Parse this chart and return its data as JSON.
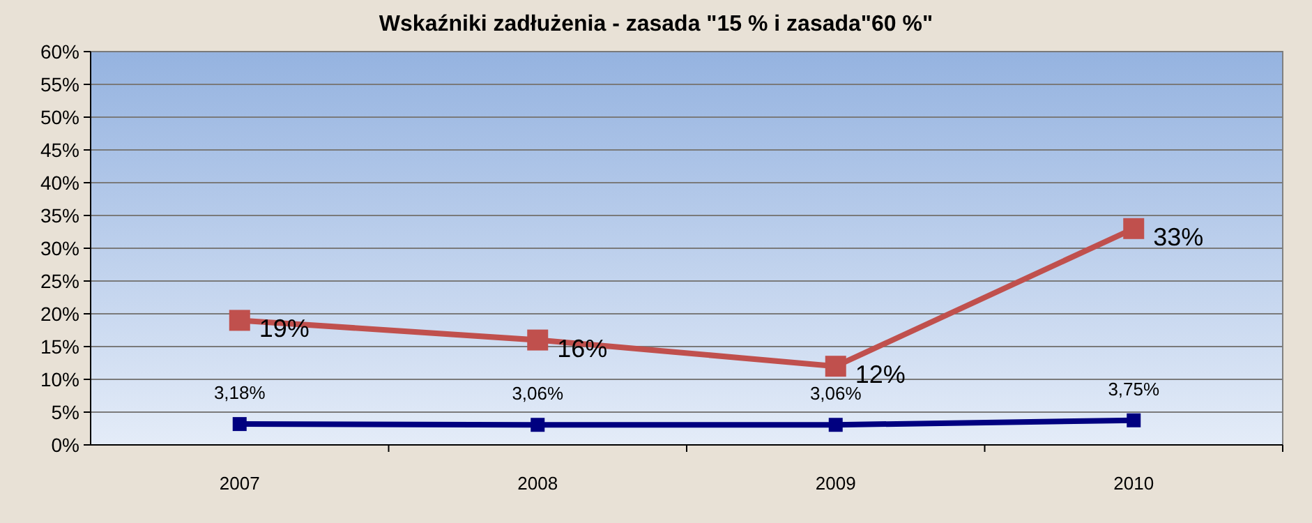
{
  "chart_data": {
    "type": "line",
    "title": "Wskaźniki zadłużenia - zasada \"15 % i zasada\"60 %\"",
    "categories": [
      "2007",
      "2008",
      "2009",
      "2010"
    ],
    "series": [
      {
        "color": "#c0504d",
        "values": [
          19,
          16,
          12,
          33
        ],
        "value_labels": [
          "19%",
          "16%",
          "12%",
          "33%"
        ]
      },
      {
        "color": "#000080",
        "values": [
          3.18,
          3.06,
          3.06,
          3.75
        ],
        "value_labels": [
          "3,18%",
          "3,06%",
          "3,06%",
          "3,75%"
        ]
      }
    ],
    "ylim": [
      0,
      60
    ],
    "yticks": [
      {
        "value": 0,
        "label": "0%"
      },
      {
        "value": 5,
        "label": "5%"
      },
      {
        "value": 10,
        "label": "10%"
      },
      {
        "value": 15,
        "label": "15%"
      },
      {
        "value": 20,
        "label": "20%"
      },
      {
        "value": 25,
        "label": "25%"
      },
      {
        "value": 30,
        "label": "30%"
      },
      {
        "value": 35,
        "label": "35%"
      },
      {
        "value": 40,
        "label": "40%"
      },
      {
        "value": 45,
        "label": "45%"
      },
      {
        "value": 50,
        "label": "50%"
      },
      {
        "value": 55,
        "label": "55%"
      },
      {
        "value": 60,
        "label": "60%"
      }
    ],
    "grid": "y",
    "marker": "square",
    "line_style": "solid"
  }
}
